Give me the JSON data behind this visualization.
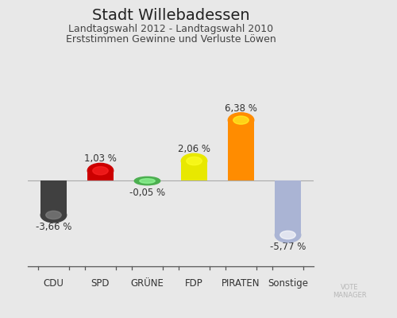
{
  "title": "Stadt Willebadessen",
  "subtitle1": "Landtagswahl 2012 - Landtagswahl 2010",
  "subtitle2": "Erststimmen Gewinne und Verluste Löwen",
  "categories": [
    "CDU",
    "SPD",
    "GRÜNE",
    "FDP",
    "PIRATEN",
    "Sonstige"
  ],
  "values": [
    -3.66,
    1.03,
    -0.05,
    2.06,
    6.38,
    -5.77
  ],
  "labels": [
    "-3,66 %",
    "1,03 %",
    "-0,05 %",
    "2,06 %",
    "6,38 %",
    "-5,77 %"
  ],
  "colors": [
    "#404040",
    "#cc0000",
    "#4caf50",
    "#e8e800",
    "#ff8c00",
    "#aab4d4"
  ],
  "background_color": "#e8e8e8",
  "ylim": [
    -8.5,
    9.0
  ],
  "bar_width": 0.55,
  "title_fontsize": 14,
  "subtitle_fontsize": 9,
  "label_fontsize": 8.5,
  "category_fontsize": 8.5
}
